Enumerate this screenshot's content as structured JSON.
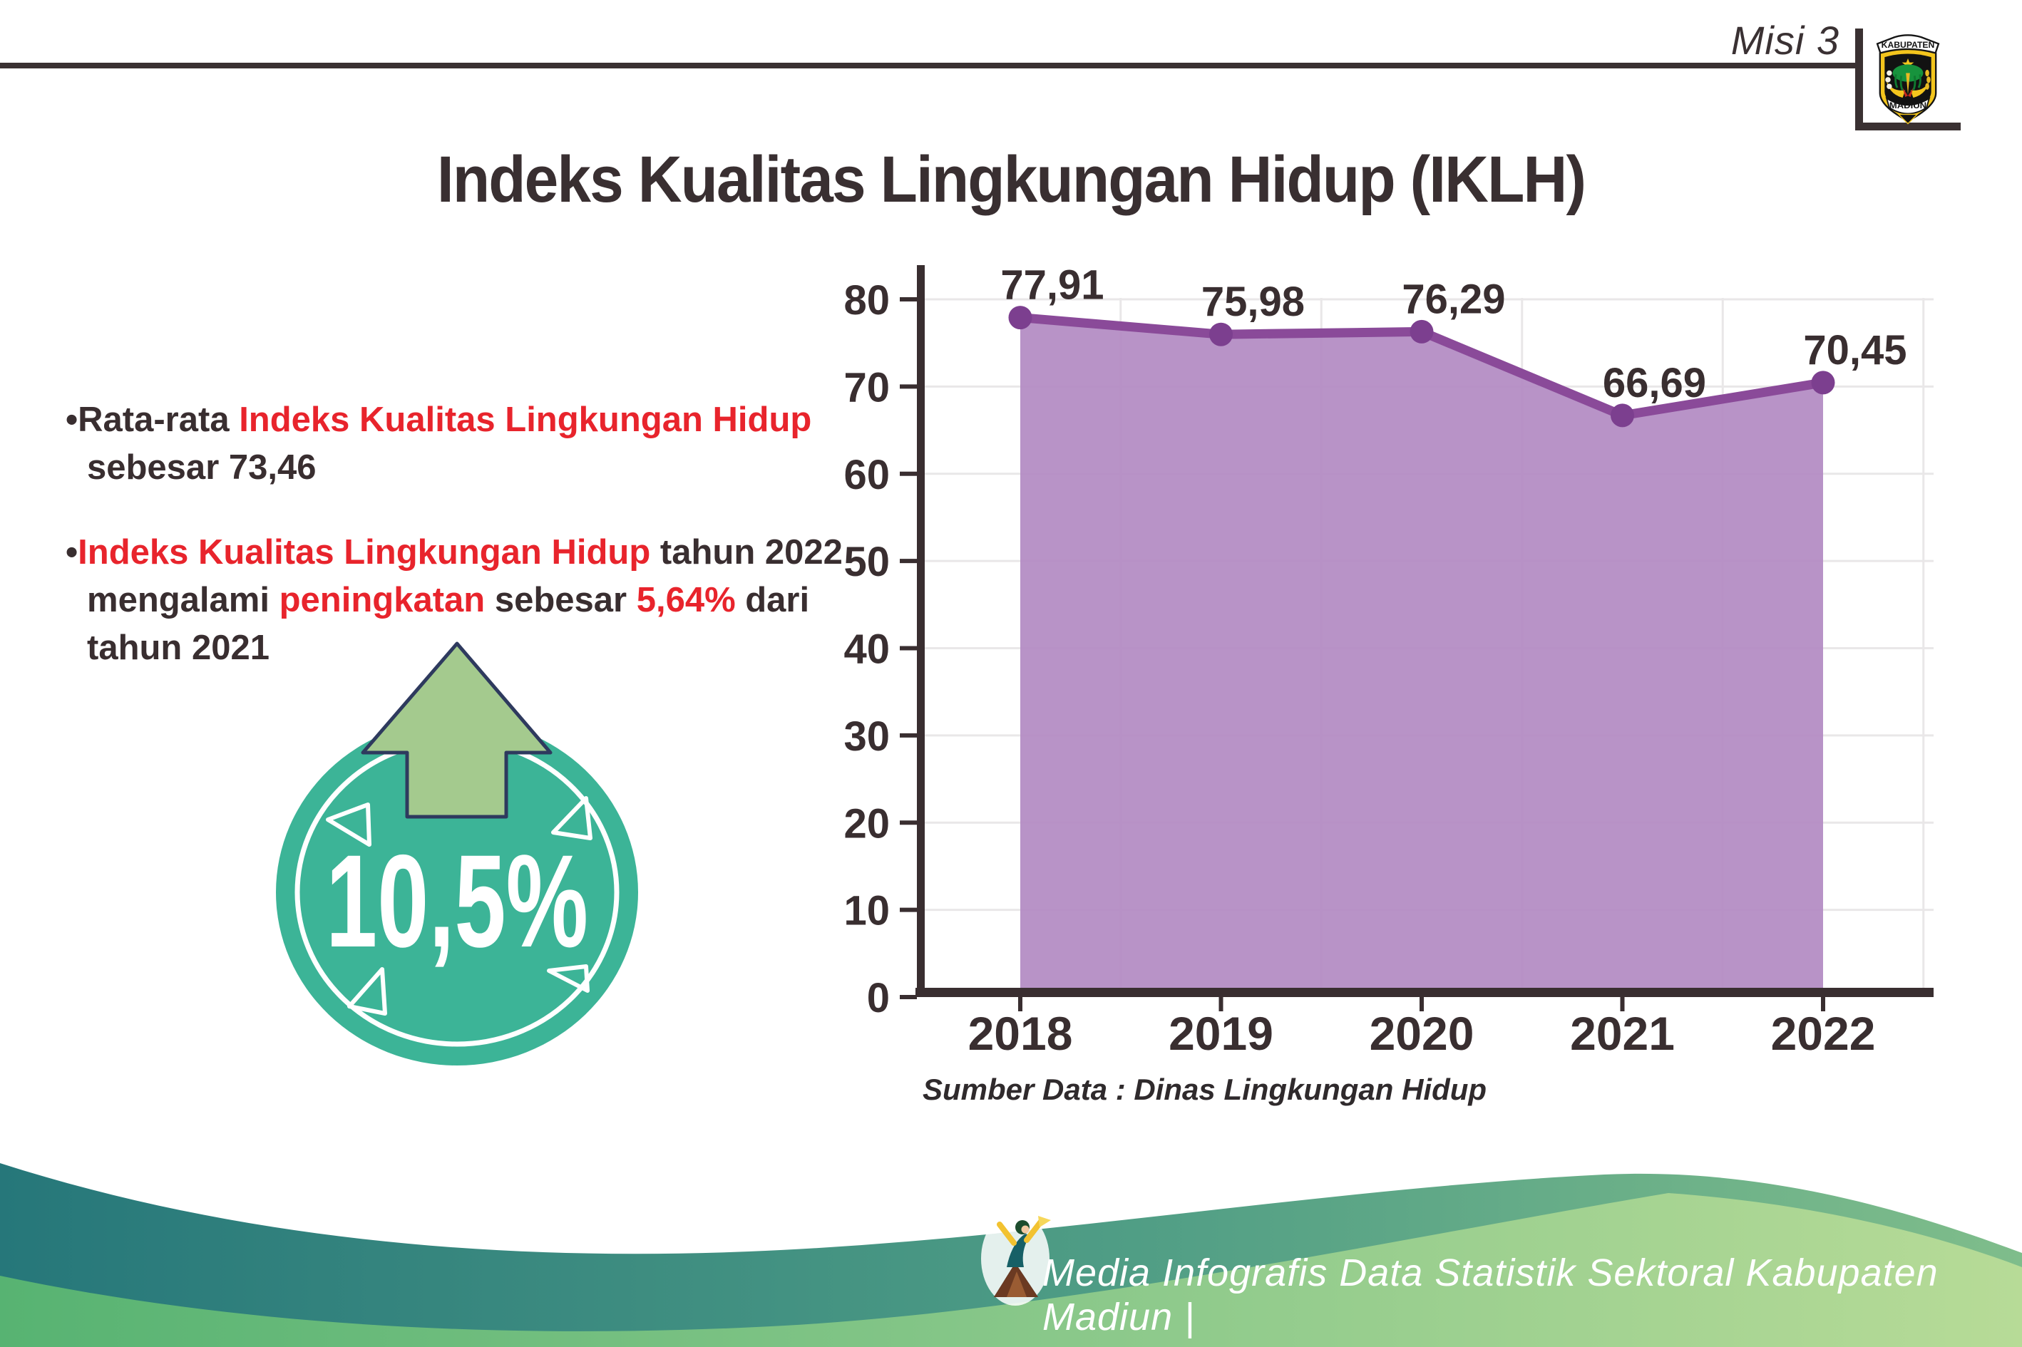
{
  "page": {
    "misi_label": "Misi 3",
    "title": "Indeks Kualitas Lingkungan Hidup (IKLH)"
  },
  "logo": {
    "top_banner": "KABUPATEN",
    "bottom_banner": "MADIUN"
  },
  "bullets": [
    {
      "segments": [
        {
          "text": "Rata-rata ",
          "color": "dark"
        },
        {
          "text": "Indeks Kualitas Lingkungan Hidup",
          "color": "red"
        },
        {
          "text": " sebesar 73,46",
          "color": "dark"
        }
      ]
    },
    {
      "segments": [
        {
          "text": "Indeks Kualitas Lingkungan Hidup",
          "color": "red"
        },
        {
          "text": " tahun 2022 mengalami ",
          "color": "dark"
        },
        {
          "text": "peningkatan",
          "color": "red"
        },
        {
          "text": " sebesar ",
          "color": "dark"
        },
        {
          "text": "5,64%",
          "color": "red"
        },
        {
          "text": " dari tahun 2021",
          "color": "dark"
        }
      ]
    }
  ],
  "badge": {
    "value": "10,5%"
  },
  "chart_data": {
    "type": "area",
    "title": "",
    "x": [
      "2018",
      "2019",
      "2020",
      "2021",
      "2022"
    ],
    "series": [
      {
        "name": "IKLH",
        "values": [
          77.91,
          75.98,
          76.29,
          66.69,
          70.45
        ]
      }
    ],
    "point_labels": [
      "77,91",
      "75,98",
      "76,29",
      "66,69",
      "70,45"
    ],
    "y_ticks": [
      0,
      10,
      20,
      30,
      40,
      50,
      60,
      70,
      80
    ],
    "ylim": [
      0,
      84
    ],
    "grid": true,
    "legend": "none",
    "source": "Sumber Data : Dinas Lingkungan Hidup"
  },
  "footer": {
    "credit": "Media Infografis Data Statistik Sektoral Kabupaten Madiun |"
  },
  "colors": {
    "red": "#e8242c",
    "dark": "#392e30",
    "teal_badge": "#3cb497",
    "arrow_green": "#a4ca8e",
    "navy_outline": "#2e3a5e",
    "line_purple": "#8a4a99",
    "fill_purple": "#b28ac2",
    "dot_purple": "#7c3f8f",
    "wave_teal_dark": "#26777a",
    "wave_teal_light": "#7fbd8b",
    "wave_green_dark": "#57b372",
    "wave_green_light": "#b7db97"
  }
}
